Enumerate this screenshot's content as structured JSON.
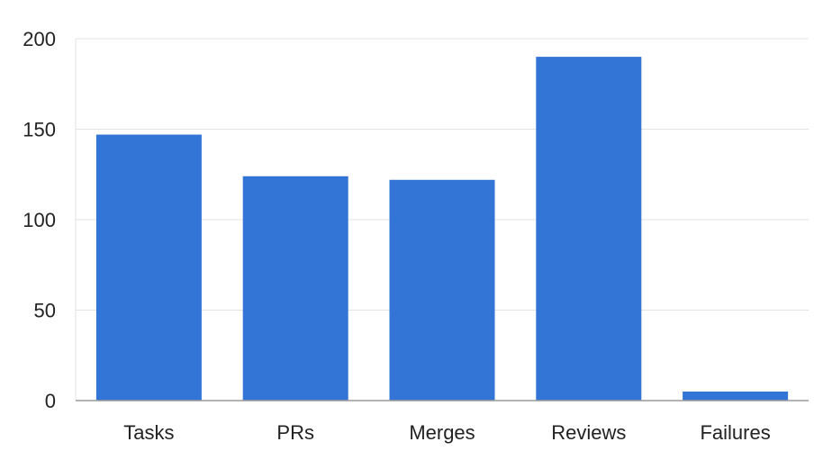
{
  "chart_data": {
    "type": "bar",
    "categories": [
      "Tasks",
      "PRs",
      "Merges",
      "Reviews",
      "Failures"
    ],
    "values": [
      147,
      124,
      122,
      190,
      5
    ],
    "ylim": [
      0,
      200
    ],
    "yticks": [
      0,
      50,
      100,
      150,
      200
    ],
    "grid": true,
    "legend": "none",
    "bar_color": "#3275d6",
    "grid_color": "#e3e3e3",
    "axis_color": "#9a9a9a",
    "text_color": "#222222"
  }
}
